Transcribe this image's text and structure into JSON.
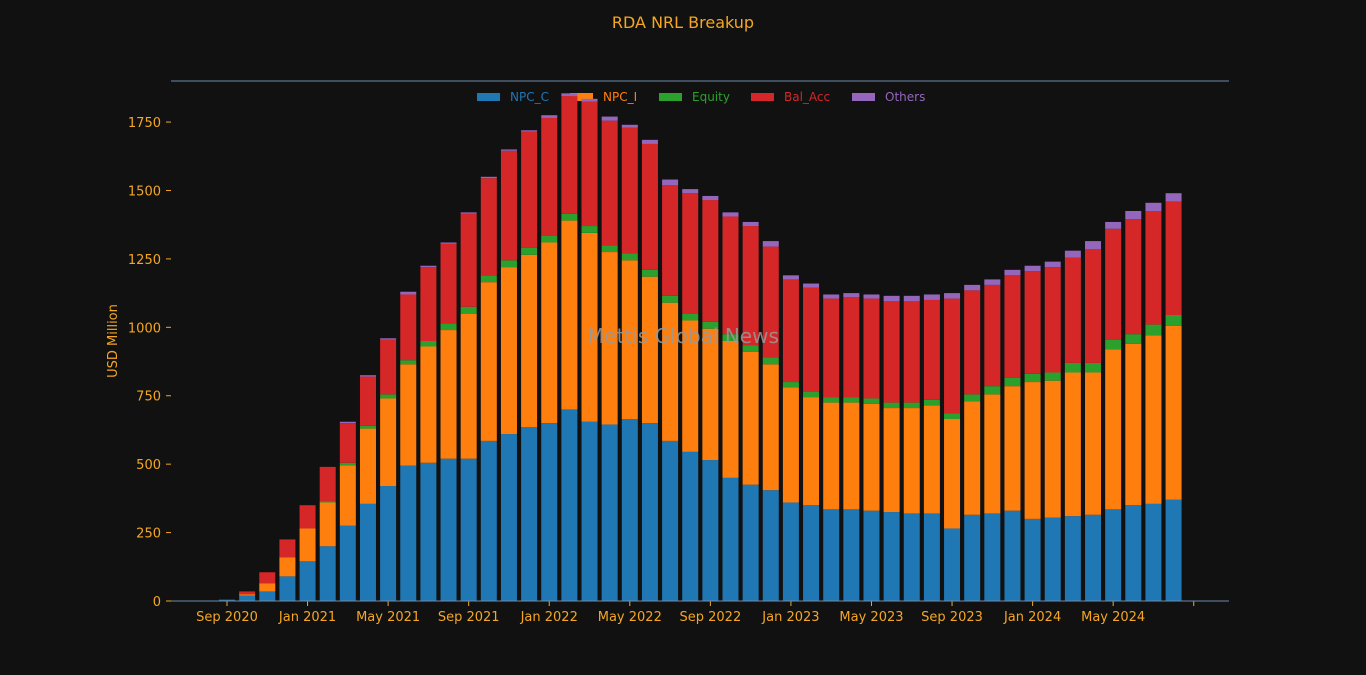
{
  "chart_data": {
    "type": "bar",
    "stacked": true,
    "title": "RDA NRL Breakup",
    "ylabel": "USD Million",
    "xlabel": "",
    "watermark": "Mettis Global News",
    "ylim": [
      0,
      1900
    ],
    "yticks": [
      0,
      250,
      500,
      750,
      1000,
      1250,
      1500,
      1750
    ],
    "legend_position": "top-center",
    "grid": false,
    "x": [
      "2020-08",
      "2020-09",
      "2020-10",
      "2020-11",
      "2020-12",
      "2021-01",
      "2021-02",
      "2021-03",
      "2021-04",
      "2021-05",
      "2021-06",
      "2021-07",
      "2021-08",
      "2021-09",
      "2021-10",
      "2021-11",
      "2021-12",
      "2022-01",
      "2022-02",
      "2022-03",
      "2022-04",
      "2022-05",
      "2022-06",
      "2022-07",
      "2022-08",
      "2022-09",
      "2022-10",
      "2022-11",
      "2022-12",
      "2023-01",
      "2023-02",
      "2023-03",
      "2023-04",
      "2023-05",
      "2023-06",
      "2023-07",
      "2023-08",
      "2023-09",
      "2023-10",
      "2023-11",
      "2023-12",
      "2024-01",
      "2024-02",
      "2024-03",
      "2024-04",
      "2024-05",
      "2024-06",
      "2024-07",
      "2024-08"
    ],
    "xticks": [
      {
        "index": 1,
        "label": "Sep 2020"
      },
      {
        "index": 5,
        "label": "Jan 2021"
      },
      {
        "index": 9,
        "label": "May 2021"
      },
      {
        "index": 13,
        "label": "Sep 2021"
      },
      {
        "index": 17,
        "label": "Jan 2022"
      },
      {
        "index": 21,
        "label": "May 2022"
      },
      {
        "index": 25,
        "label": "Sep 2022"
      },
      {
        "index": 29,
        "label": "Jan 2023"
      },
      {
        "index": 33,
        "label": "May 2023"
      },
      {
        "index": 37,
        "label": "Sep 2023"
      },
      {
        "index": 41,
        "label": "Jan 2024"
      },
      {
        "index": 45,
        "label": "May 2024"
      },
      {
        "index": 49,
        "label": ""
      }
    ],
    "series": [
      {
        "name": "NPC_C",
        "color": "#1f77b4",
        "values": [
          0,
          5,
          20,
          35,
          90,
          145,
          200,
          275,
          355,
          420,
          495,
          505,
          520,
          520,
          585,
          610,
          635,
          650,
          700,
          655,
          645,
          665,
          650,
          585,
          545,
          515,
          450,
          425,
          405,
          360,
          350,
          335,
          335,
          330,
          325,
          320,
          320,
          265,
          315,
          320,
          330,
          300,
          305,
          310,
          315,
          335,
          350,
          355,
          370
        ]
      },
      {
        "name": "NPC_I",
        "color": "#ff7f0e",
        "values": [
          0,
          0,
          5,
          30,
          70,
          120,
          160,
          220,
          275,
          320,
          370,
          425,
          470,
          530,
          580,
          610,
          630,
          660,
          690,
          690,
          630,
          580,
          535,
          505,
          480,
          480,
          500,
          485,
          460,
          420,
          395,
          390,
          390,
          390,
          380,
          385,
          395,
          400,
          415,
          435,
          455,
          500,
          500,
          525,
          520,
          585,
          590,
          615,
          635
        ]
      },
      {
        "name": "Equity",
        "color": "#2ca02c",
        "values": [
          0,
          0,
          0,
          0,
          0,
          0,
          5,
          10,
          10,
          15,
          15,
          20,
          25,
          25,
          25,
          25,
          25,
          25,
          25,
          25,
          25,
          25,
          25,
          25,
          25,
          25,
          25,
          25,
          25,
          20,
          20,
          20,
          20,
          20,
          20,
          20,
          20,
          20,
          25,
          30,
          30,
          30,
          30,
          35,
          35,
          35,
          35,
          40,
          40
        ]
      },
      {
        "name": "Bal_Acc",
        "color": "#d62728",
        "values": [
          0,
          0,
          10,
          40,
          65,
          85,
          125,
          145,
          180,
          200,
          240,
          270,
          290,
          340,
          355,
          400,
          425,
          430,
          430,
          455,
          455,
          460,
          460,
          405,
          440,
          445,
          430,
          435,
          405,
          375,
          380,
          360,
          365,
          365,
          370,
          370,
          365,
          420,
          380,
          370,
          375,
          375,
          385,
          385,
          415,
          405,
          420,
          415,
          415
        ]
      },
      {
        "name": "Others",
        "color": "#9467bd",
        "values": [
          0,
          0,
          0,
          0,
          0,
          0,
          0,
          5,
          5,
          5,
          10,
          5,
          5,
          5,
          5,
          5,
          5,
          10,
          10,
          10,
          15,
          10,
          15,
          20,
          15,
          15,
          15,
          15,
          20,
          15,
          15,
          15,
          15,
          15,
          20,
          20,
          20,
          20,
          20,
          20,
          20,
          20,
          20,
          25,
          30,
          25,
          30,
          30,
          30
        ]
      }
    ]
  }
}
